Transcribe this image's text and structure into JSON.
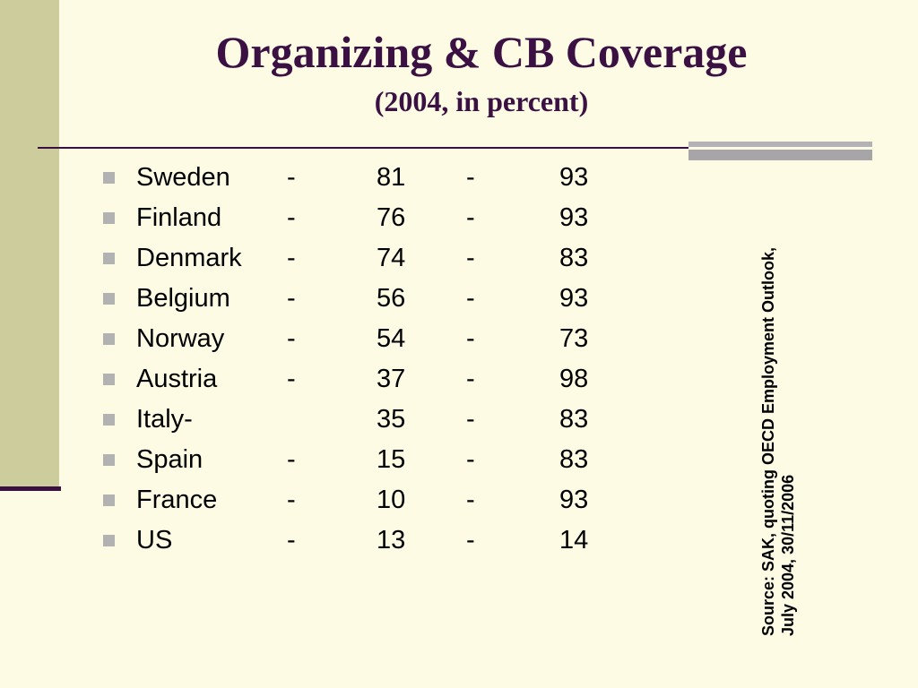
{
  "slide": {
    "title": "Organizing & CB Coverage",
    "subtitle": "(2004, in percent)",
    "source_line1": "Source: SAK, quoting OECD Employment Outlook,",
    "source_line2": "July 2004, 30/11/2006"
  },
  "table": {
    "rows": [
      {
        "country": "Sweden",
        "sep1": "-",
        "v1": "81",
        "sep2": "-",
        "v2": "93"
      },
      {
        "country": "Finland",
        "sep1": "-",
        "v1": "76",
        "sep2": "-",
        "v2": "93"
      },
      {
        "country": "Denmark",
        "sep1": "-",
        "v1": "74",
        "sep2": "-",
        "v2": "83"
      },
      {
        "country": "Belgium",
        "sep1": "-",
        "v1": "56",
        "sep2": "-",
        "v2": "93"
      },
      {
        "country": "Norway",
        "sep1": "-",
        "v1": "54",
        "sep2": "-",
        "v2": "73"
      },
      {
        "country": "Austria",
        "sep1": "-",
        "v1": "37",
        "sep2": "-",
        "v2": "98"
      },
      {
        "country": "Italy-",
        "sep1": "",
        "v1": "35",
        "sep2": "-",
        "v2": "83"
      },
      {
        "country": "Spain",
        "sep1": "-",
        "v1": "15",
        "sep2": "-",
        "v2": "83"
      },
      {
        "country": "France",
        "sep1": "-",
        "v1": "10",
        "sep2": "-",
        "v2": "93"
      },
      {
        "country": "US",
        "sep1": "-",
        "v1": "13",
        "sep2": "-",
        "v2": "14"
      }
    ]
  },
  "colors": {
    "background": "#fdfbe3",
    "title": "#3b1042",
    "band": "#cccc9c",
    "bullet": "#b2b2b2"
  }
}
